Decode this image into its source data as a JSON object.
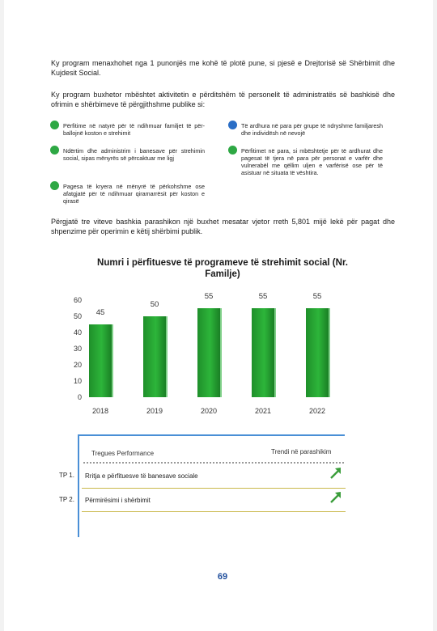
{
  "paragraphs": {
    "p1": "Ky program menaxhohet nga 1 punonjës me kohë të plotë pune, si pjesë e Drejtorisë së Shërbimit dhe Kujdesit Social.",
    "p2": "Ky program buxhetor mbështet aktivitetin e përditshëm të personelit të administratës së bashkisë dhe ofrimin e shërbimeve të përgjithshme publike si:",
    "p3": "Përgjatë tre viteve bashkia parashikon një buxhet mesatar vjetor rreth 5,801 mijë lekë për pagat dhe shpenzime për operimin e këtij shërbimi publik."
  },
  "bullets": [
    {
      "text": "Përfitime në natyrë për të ndihmuar familjet të për-ballojnë koston e strehimit",
      "color": "#2ea844"
    },
    {
      "text": "Të ardhura në para për grupe të ndryshme familjaresh dhe individësh në nevojë",
      "color": "#2a6ec6"
    },
    {
      "text": "Ndërtim dhe administrim i banesave për strehimin social, sipas mënyrës së përcaktuar me ligj",
      "color": "#2ea844"
    },
    {
      "text": "Përfitimet në para, si mbështetje për të ardhurat dhe pagesat të tjera në para për personat e varfër dhe vulnerabël me qëllim uljen e varfërisë ose për të asistuar në situata të vështira.",
      "color": "#2ea844"
    },
    {
      "text": "Pagesa të kryera në mënyrë të përkohshme ose afatgjatë për të ndihmuar qiramarrësit për koston e qirasë",
      "color": "#2ea844"
    }
  ],
  "chart_data": {
    "type": "bar",
    "title": "Numri i përfituesve të programeve të strehimit social (Nr. Familje)",
    "categories": [
      "2018",
      "2019",
      "2020",
      "2021",
      "2022"
    ],
    "values": [
      45,
      50,
      55,
      55,
      55
    ],
    "value_labels": [
      "45",
      "50",
      "55",
      "55",
      "55"
    ],
    "yticks": [
      "0",
      "10",
      "20",
      "30",
      "40",
      "50",
      "60"
    ],
    "ylim": [
      0,
      60
    ],
    "grid": false,
    "legend": "none",
    "bar_color": "#2db53a"
  },
  "performance": {
    "header_left": "Tregues Performance",
    "header_right": "Trendi në parashikim",
    "rows": [
      {
        "code": "TP 1.",
        "label": "Rritja e përfituesve të banesave sociale",
        "trend": "up-arrow-icon"
      },
      {
        "code": "TP 2.",
        "label": "Përmirësimi i shërbimit",
        "trend": "up-arrow-icon"
      }
    ]
  },
  "page_number": "69"
}
